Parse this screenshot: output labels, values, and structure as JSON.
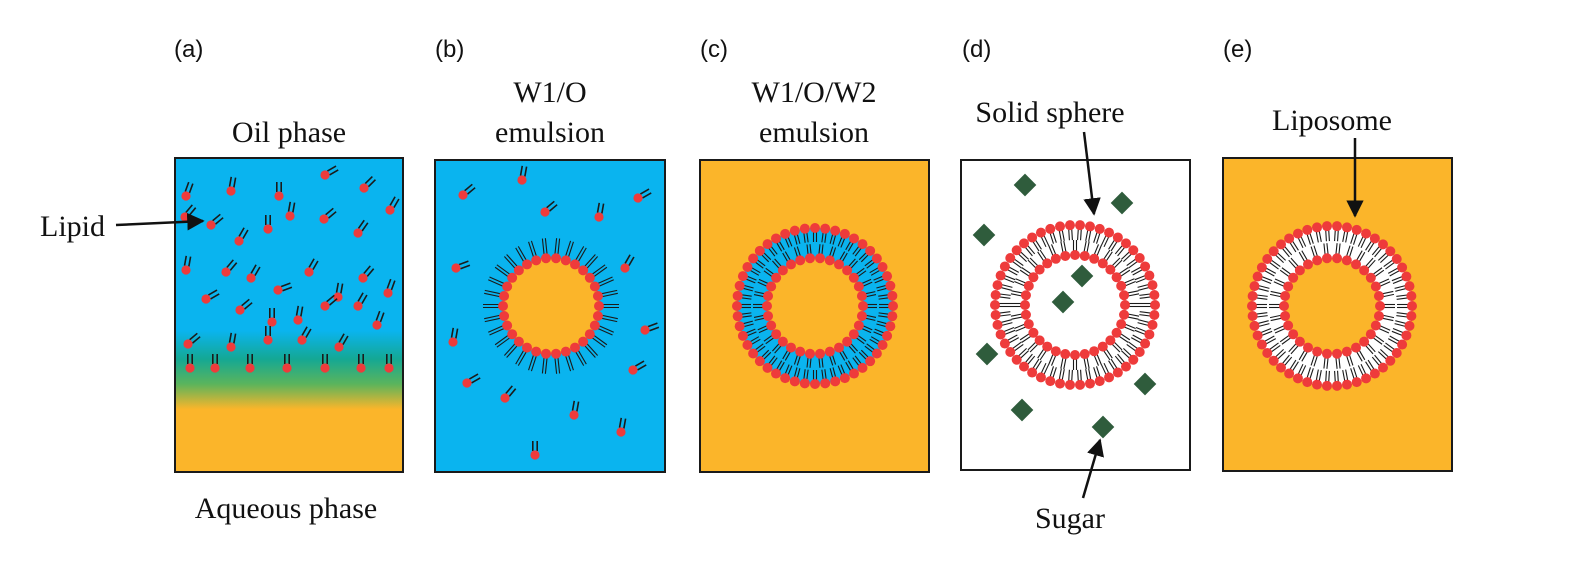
{
  "figure": {
    "panels": [
      {
        "letter": "(a)",
        "title_lines": [],
        "top_label": "Oil phase",
        "bottom_label": "Aqueous phase",
        "arrow_label": "Lipid",
        "content": "lipids dispersed in oil phase above aqueous phase, monolayer at interface"
      },
      {
        "letter": "(b)",
        "title_lines": [
          "W1/O",
          "emulsion"
        ],
        "content": "water droplet with lipid monolayer in oil"
      },
      {
        "letter": "(c)",
        "title_lines": [
          "W1/O/W2",
          "emulsion"
        ],
        "content": "double emulsion with lipid bilayer"
      },
      {
        "letter": "(d)",
        "title_lines": [],
        "top_label": "Solid sphere",
        "bottom_label": "Sugar",
        "content": "dried solid sphere with sugar crystals"
      },
      {
        "letter": "(e)",
        "title_lines": [],
        "top_label": "Liposome",
        "content": "hydrated liposome in aqueous phase"
      }
    ],
    "colors": {
      "oil": "#0ab4ef",
      "aqueous": "#fbb52a",
      "lipid_head": "#ee3b3b",
      "lipid_tail": "#1a1a1a",
      "sugar": "#2f5c3c",
      "dry": "#ffffff"
    }
  }
}
